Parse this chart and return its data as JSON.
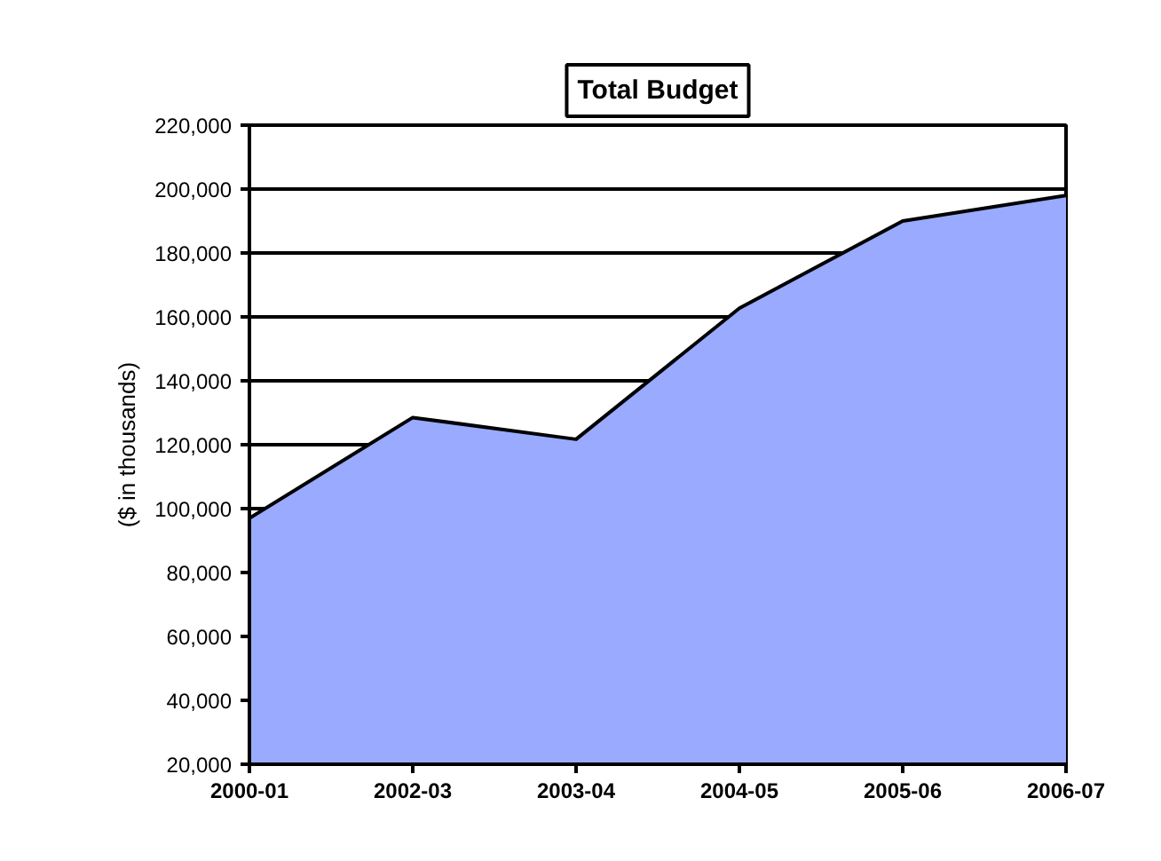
{
  "chart_data": {
    "type": "area",
    "title": "Total Budget",
    "ylabel": "($ in thousands)",
    "categories": [
      "2000-01",
      "2002-03",
      "2003-04",
      "2004-05",
      "2005-06",
      "2006-07"
    ],
    "series": [
      {
        "color": "#99aaff",
        "values": [
          97000,
          128500,
          121700,
          162700,
          190000,
          198000
        ]
      }
    ],
    "ylim": [
      20000,
      220000
    ],
    "yticks": [
      {
        "value": 20000,
        "label": "20,000"
      },
      {
        "value": 40000,
        "label": "40,000"
      },
      {
        "value": 60000,
        "label": "60,000"
      },
      {
        "value": 80000,
        "label": "80,000"
      },
      {
        "value": 100000,
        "label": "100,000"
      },
      {
        "value": 120000,
        "label": "120,000"
      },
      {
        "value": 140000,
        "label": "140,000"
      },
      {
        "value": 160000,
        "label": "160,000"
      },
      {
        "value": 180000,
        "label": "180,000"
      },
      {
        "value": 200000,
        "label": "200,000"
      },
      {
        "value": 220000,
        "label": "220,000"
      }
    ],
    "grid": "y"
  }
}
